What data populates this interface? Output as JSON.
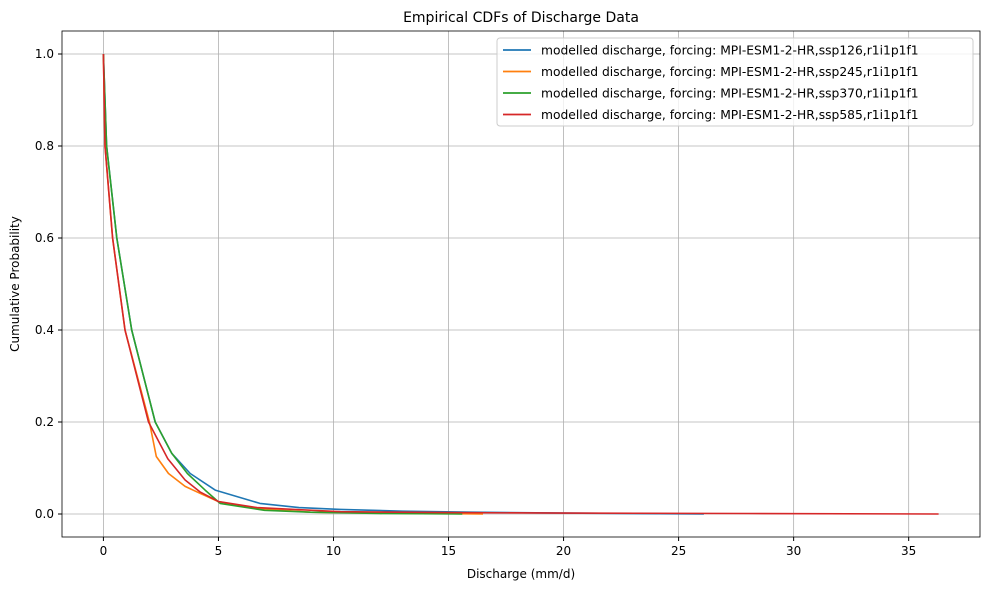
{
  "chart_data": {
    "type": "line",
    "title": "Empirical CDFs of Discharge Data",
    "xlabel": "Discharge (mm/d)",
    "ylabel": "Cumulative Probability",
    "xlim": [
      -1.8,
      38.1
    ],
    "ylim": [
      -0.05,
      1.05
    ],
    "xticks": [
      0,
      5,
      10,
      15,
      20,
      25,
      30,
      35
    ],
    "xtick_labels": [
      "0",
      "5",
      "10",
      "15",
      "20",
      "25",
      "30",
      "35"
    ],
    "yticks": [
      0,
      0.2,
      0.4,
      0.6,
      0.8,
      1.0
    ],
    "ytick_labels": [
      "0.0",
      "0.2",
      "0.4",
      "0.6",
      "0.8",
      "1.0"
    ],
    "grid": true,
    "legend_position": "top-right",
    "series": [
      {
        "name": "modelled discharge, forcing: MPI-ESM1-2-HR,ssp126,r1i1p1f1",
        "color": "#1f77b4",
        "x": [
          0,
          0.14,
          0.58,
          1.23,
          2.25,
          2.97,
          3.77,
          4.86,
          6.8,
          8.5,
          10.3,
          13,
          16,
          20,
          26.1
        ],
        "y": [
          1.0,
          0.8,
          0.6,
          0.4,
          0.2,
          0.132,
          0.088,
          0.052,
          0.023,
          0.014,
          0.01,
          0.006,
          0.004,
          0.002,
          0.0
        ]
      },
      {
        "name": "modelled discharge, forcing: MPI-ESM1-2-HR,ssp245,r1i1p1f1",
        "color": "#ff7f0e",
        "x": [
          0,
          0.07,
          0.4,
          0.94,
          2.0,
          2.3,
          2.83,
          3.55,
          4.2,
          5.0,
          6.67,
          9,
          12,
          16.5
        ],
        "y": [
          1.0,
          0.8,
          0.6,
          0.4,
          0.2,
          0.125,
          0.088,
          0.06,
          0.045,
          0.027,
          0.012,
          0.004,
          0.002,
          0.0
        ]
      },
      {
        "name": "modelled discharge, forcing: MPI-ESM1-2-HR,ssp370,r1i1p1f1",
        "color": "#2ca02c",
        "x": [
          0,
          0.14,
          0.58,
          1.23,
          2.25,
          2.97,
          3.65,
          4.42,
          5.07,
          7,
          9,
          12,
          15.6
        ],
        "y": [
          1.0,
          0.8,
          0.6,
          0.4,
          0.2,
          0.132,
          0.088,
          0.052,
          0.023,
          0.008,
          0.004,
          0.001,
          0.0
        ]
      },
      {
        "name": "modelled discharge, forcing: MPI-ESM1-2-HR,ssp585,r1i1p1f1",
        "color": "#d62728",
        "x": [
          0,
          0.07,
          0.4,
          0.94,
          1.96,
          2.8,
          3.55,
          4.2,
          5.0,
          6.67,
          10.3,
          15,
          20,
          28,
          36.3
        ],
        "y": [
          1.0,
          0.8,
          0.6,
          0.4,
          0.2,
          0.12,
          0.074,
          0.048,
          0.027,
          0.014,
          0.005,
          0.003,
          0.002,
          0.001,
          0.0
        ]
      }
    ]
  }
}
